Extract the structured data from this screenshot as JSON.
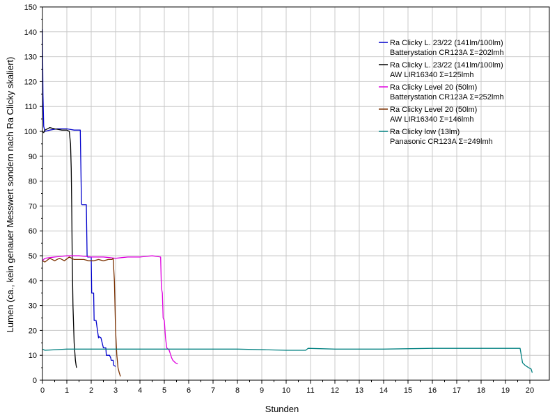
{
  "chart_data": {
    "type": "line",
    "title": "",
    "xlabel": "Stunden",
    "ylabel": "Lumen (ca., kein genauer Messwert sondern nach Ra Clicky skaliert)",
    "xlim": [
      0,
      20.8
    ],
    "ylim": [
      0,
      150
    ],
    "x_ticks": [
      "0",
      "1",
      "2",
      "3",
      "4",
      "5",
      "6",
      "7",
      "8",
      "9",
      "10",
      "11",
      "12",
      "13",
      "14",
      "15",
      "16",
      "17",
      "18",
      "19",
      "20"
    ],
    "y_ticks": [
      "0",
      "10",
      "20",
      "30",
      "40",
      "50",
      "60",
      "70",
      "80",
      "90",
      "100",
      "110",
      "120",
      "130",
      "140",
      "150"
    ],
    "grid": true,
    "legend_position": "top-right",
    "series": [
      {
        "name": "Ra Clicky L. 23/22 (141lm/100lm)",
        "name2": "Batterystation CR123A  Σ=202lmh",
        "color": "#0000cc",
        "x": [
          0,
          0.02,
          0.05,
          0.1,
          0.3,
          0.6,
          1.0,
          1.3,
          1.55,
          1.6,
          1.62,
          1.8,
          1.83,
          1.85,
          2.0,
          2.02,
          2.1,
          2.12,
          2.2,
          2.3,
          2.32,
          2.4,
          2.5,
          2.6,
          2.62,
          2.75,
          2.8,
          2.82,
          2.9,
          2.92,
          3.0
        ],
        "y": [
          141,
          115,
          102,
          100,
          100.5,
          101,
          101,
          100.5,
          100.5,
          71,
          70.5,
          70.5,
          50,
          49.5,
          49.5,
          35,
          35,
          24,
          24,
          17,
          17.5,
          17,
          13,
          13,
          10,
          10,
          9,
          8,
          8,
          6,
          5.5
        ]
      },
      {
        "name": "Ra Clicky L. 23/22 (141lm/100lm)",
        "name2": "AW LIR16340  Σ=125lmh",
        "color": "#000000",
        "x": [
          0,
          0.05,
          0.1,
          0.2,
          0.3,
          0.5,
          0.8,
          1.0,
          1.1,
          1.15,
          1.18,
          1.2,
          1.22,
          1.25,
          1.3,
          1.35,
          1.38,
          1.4
        ],
        "y": [
          100,
          99.5,
          100.5,
          101,
          101.5,
          101,
          100.5,
          100.5,
          100,
          95,
          85,
          70,
          50,
          30,
          15,
          8,
          6,
          5
        ]
      },
      {
        "name": "Ra Clicky Level 20 (50lm)",
        "name2": "Batterystation CR123A  Σ=252lmh",
        "color": "#e000e0",
        "x": [
          0,
          0.1,
          0.5,
          1.0,
          1.5,
          2.0,
          2.5,
          3.0,
          3.5,
          4.0,
          4.5,
          4.85,
          4.88,
          4.92,
          4.95,
          5.0,
          5.05,
          5.1,
          5.2,
          5.3,
          5.35,
          5.45,
          5.55
        ],
        "y": [
          48,
          49,
          49.5,
          50,
          50,
          49.5,
          49.5,
          49,
          49.5,
          49.5,
          50,
          49.5,
          37,
          35,
          25,
          24,
          17,
          13,
          12,
          9,
          8,
          7,
          6.5
        ]
      },
      {
        "name": "Ra Clicky Level 20 (50lm)",
        "name2": "AW LIR16340  Σ=146lmh",
        "color": "#7a3000",
        "x": [
          0,
          0.1,
          0.3,
          0.5,
          0.7,
          0.9,
          1.1,
          1.3,
          1.5,
          1.7,
          1.9,
          2.1,
          2.3,
          2.5,
          2.7,
          2.85,
          2.9,
          2.95,
          3.0,
          3.05,
          3.1,
          3.15,
          3.2
        ],
        "y": [
          48,
          47.5,
          49,
          48,
          49,
          48,
          49.5,
          48.5,
          48.5,
          48.5,
          48,
          48,
          48.5,
          48,
          48.5,
          48.5,
          49,
          40,
          20,
          10,
          5,
          3,
          1.5
        ]
      },
      {
        "name": "Ra Clicky low (13lm)",
        "name2": "Panasonic CR123A  Σ=249lmh",
        "color": "#008080",
        "x": [
          0,
          0.1,
          1.0,
          2.0,
          4.0,
          6.0,
          8.0,
          10.0,
          10.8,
          10.9,
          12.0,
          14.0,
          16.0,
          18.0,
          19.0,
          19.6,
          19.65,
          19.7,
          19.8,
          19.95,
          20.05,
          20.1
        ],
        "y": [
          12.5,
          12,
          12.5,
          12.5,
          12.5,
          12.5,
          12.5,
          12,
          12,
          12.8,
          12.5,
          12.5,
          12.8,
          12.8,
          12.8,
          12.8,
          10,
          7,
          6,
          5,
          4.5,
          3
        ]
      }
    ]
  }
}
